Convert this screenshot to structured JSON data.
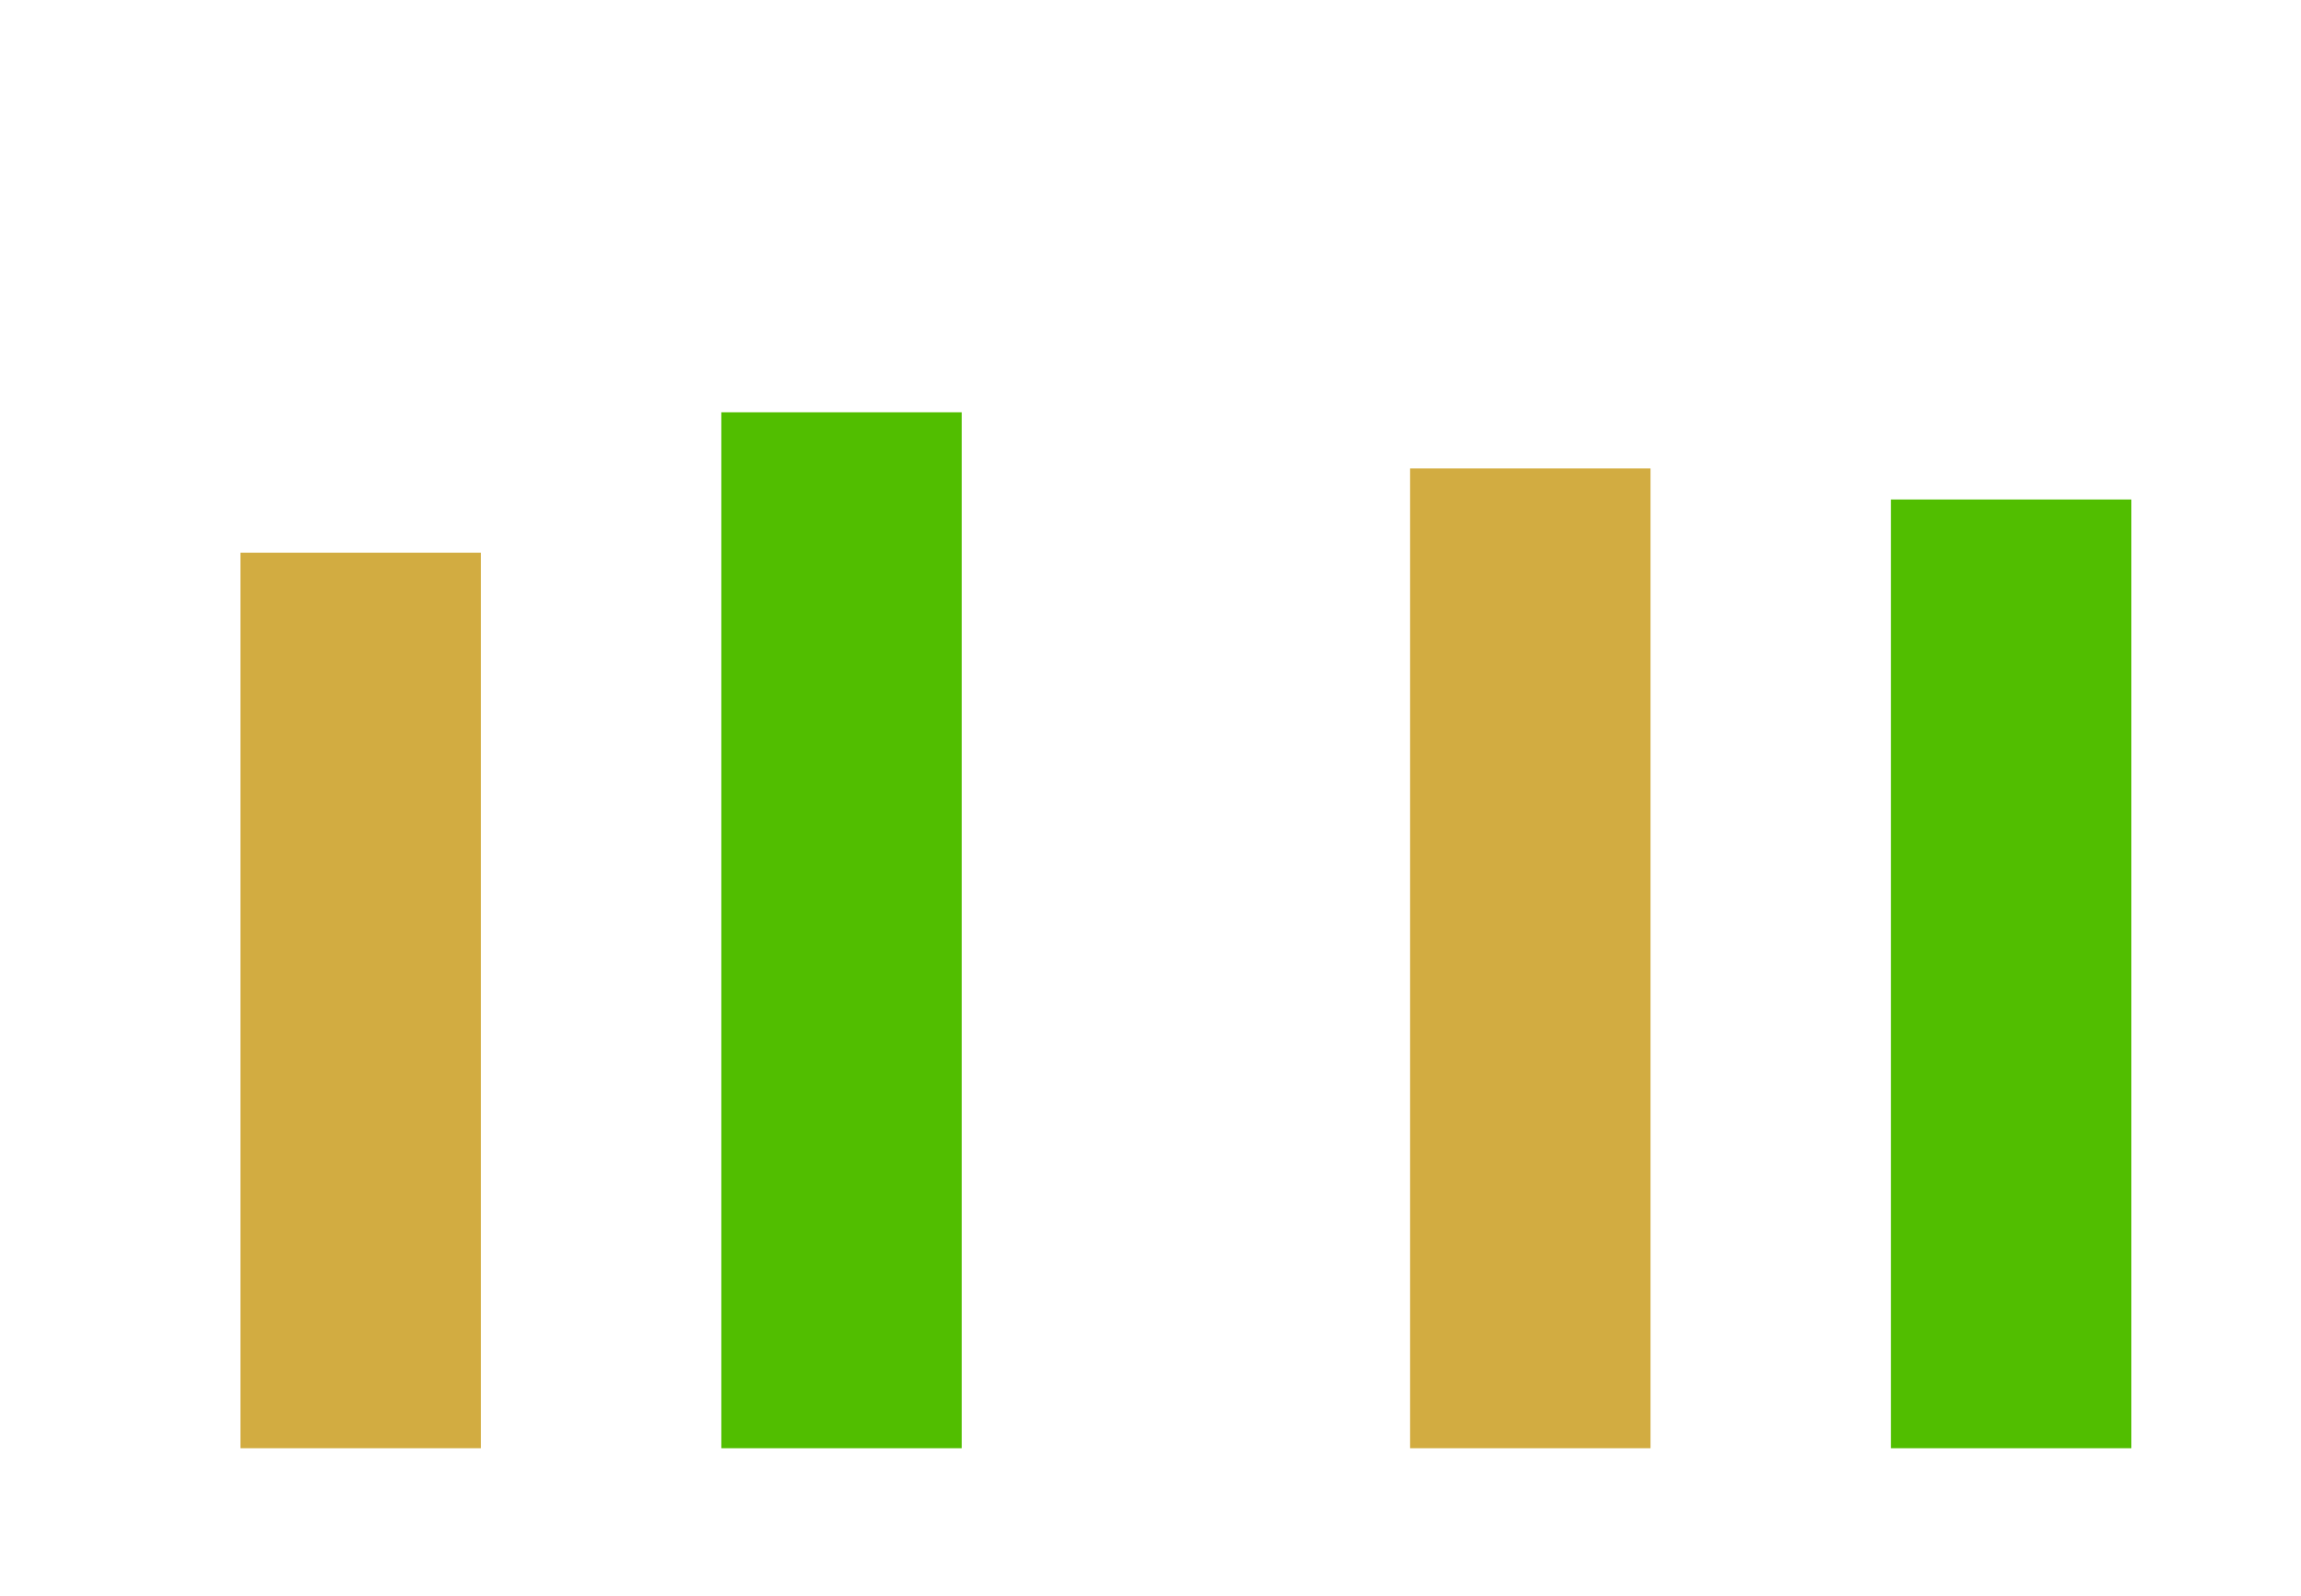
{
  "chart_data": {
    "type": "bar",
    "categories": [
      null,
      null
    ],
    "series": [
      {
        "color": "#d2ac41",
        "values": [
          606,
          663
        ]
      },
      {
        "color": "#51be00",
        "values": [
          701,
          642
        ]
      }
    ],
    "ylim": [
      0,
      800
    ]
  }
}
